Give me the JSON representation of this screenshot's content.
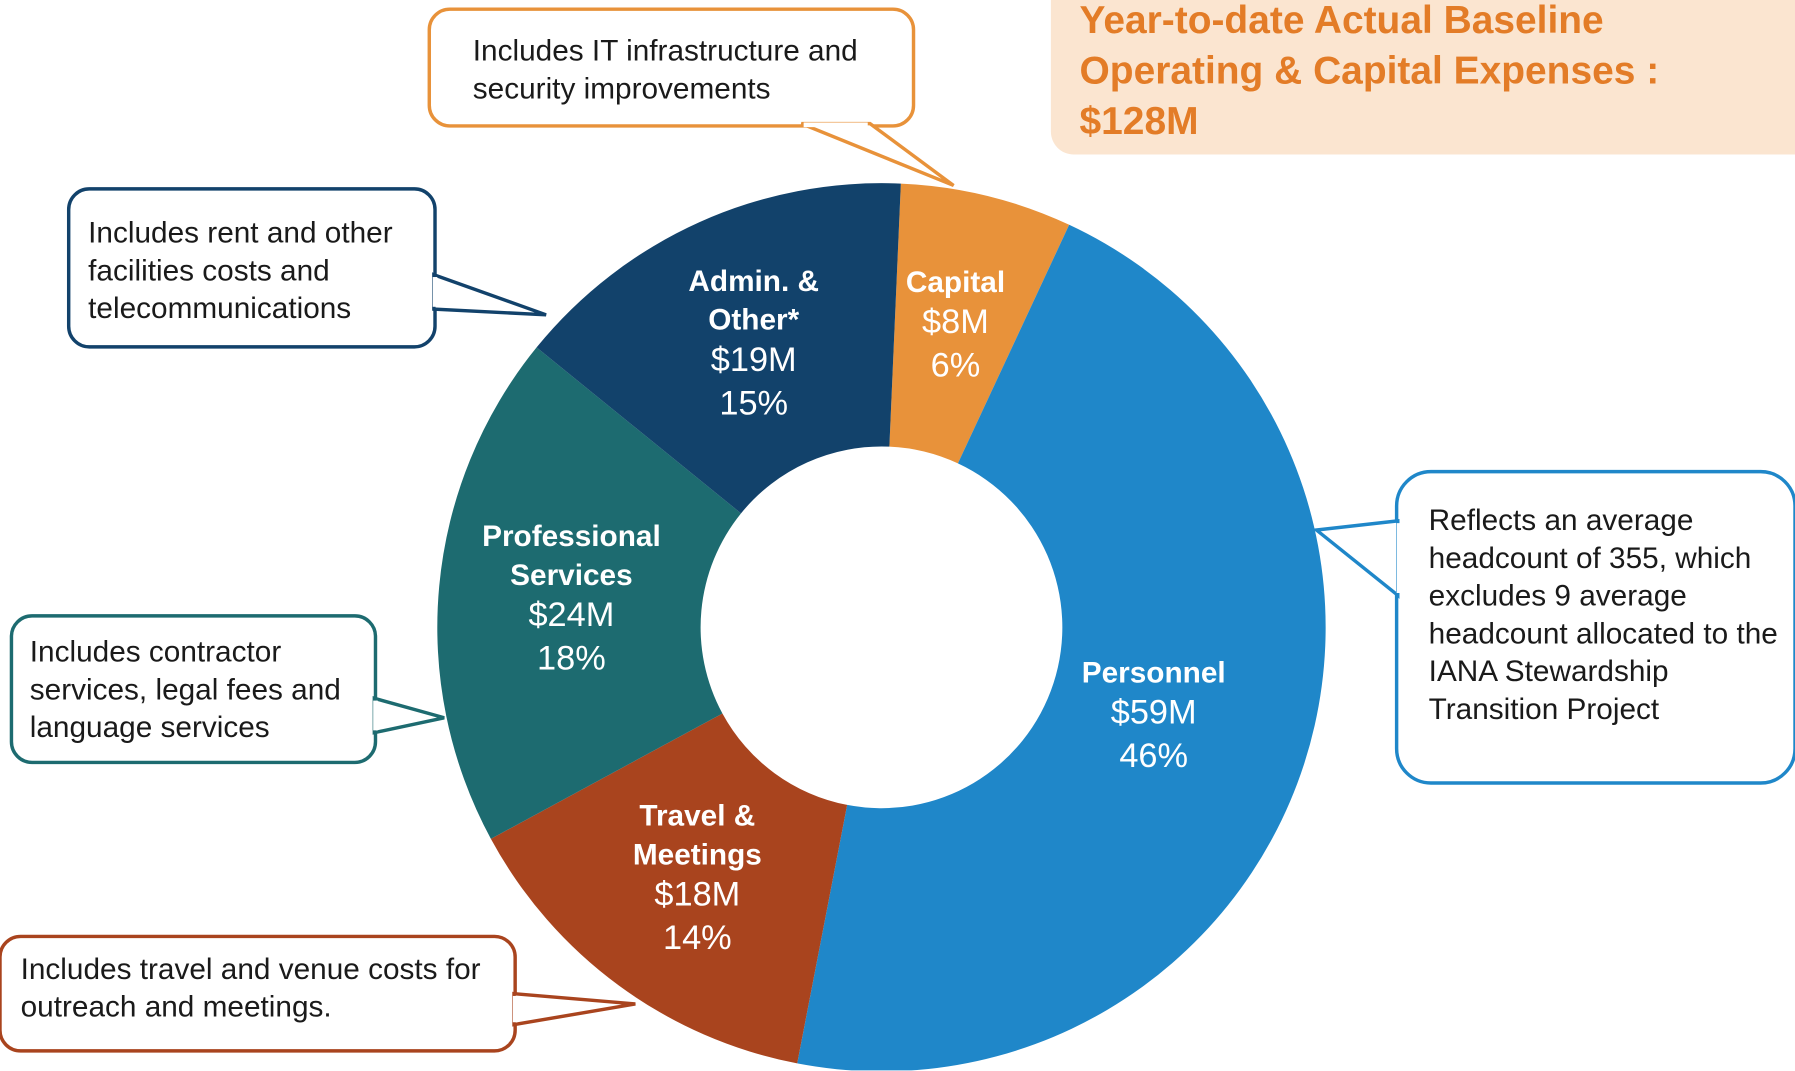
{
  "chart_data": {
    "type": "donut",
    "title": "Year-to-date Actual Baseline Operating & Capital Expenses : $128M",
    "categories": [
      "Capital",
      "Personnel",
      "Travel & Meetings",
      "Professional Services",
      "Admin. & Other*"
    ],
    "values": [
      8,
      59,
      18,
      24,
      19
    ],
    "value_labels": [
      "$8M",
      "$59M",
      "$18M",
      "$24M",
      "$19M"
    ],
    "percent_labels": [
      "6%",
      "46%",
      "14%",
      "18%",
      "15%"
    ],
    "colors": [
      "#e8923a",
      "#1f87c9",
      "#a9441e",
      "#1d6b70",
      "#12426b"
    ],
    "callouts": [
      "Includes IT infrastructure and security improvements",
      "Reflects an average headcount of 355, which excludes 9 average headcount allocated to the IANA Stewardship Transition Project",
      "Includes travel and venue costs for outreach and meetings.",
      "Includes contractor services, legal fees and language services",
      "Includes rent and other facilities costs and telecommunications"
    ]
  }
}
